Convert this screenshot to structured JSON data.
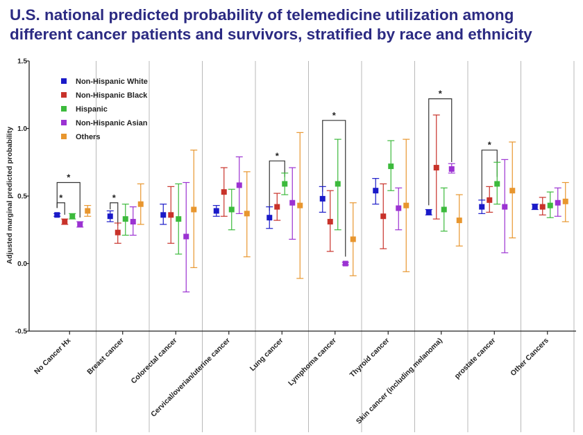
{
  "title": {
    "line1": "U.S. national predicted probability of telemedicine utilization among",
    "line2": "different cancer patients and survivors, stratified by race and ethnicity"
  },
  "chart_data": {
    "type": "scatter",
    "subtype": "point-with-error-bars",
    "ylabel": "Adjusted marginal predicted probability",
    "xlabel": "",
    "ylim": [
      -0.5,
      1.5
    ],
    "yticks": [
      {
        "value": 1.5,
        "label": "1.5"
      },
      {
        "value": 1.0,
        "label": "1.0"
      },
      {
        "value": 0.5,
        "label": "0.5"
      },
      {
        "value": 0.0,
        "label": "0.0"
      },
      {
        "value": -0.5,
        "label": "-0.5"
      }
    ],
    "grid": "vertical lines between categories",
    "legend_position": "top-left",
    "categories": [
      "No Cancer Hx",
      "Breast cancer",
      "Colorectal cancer",
      "Cervical/overian/uterine cancer",
      "Lung cancer",
      "Lymphoma cancer",
      "Thyroid cancer",
      "Skin cancer (including melanoma)",
      "prostate cancer",
      "Other Cancers"
    ],
    "series": [
      {
        "name": "Non-Hispanic White",
        "color": "#1a1ac8",
        "values": [
          0.36,
          0.35,
          0.36,
          0.39,
          0.34,
          0.48,
          0.54,
          0.38,
          0.42,
          0.42
        ],
        "lower": [
          0.35,
          0.31,
          0.29,
          0.35,
          0.26,
          0.38,
          0.44,
          0.36,
          0.37,
          0.4
        ],
        "upper": [
          0.37,
          0.39,
          0.44,
          0.43,
          0.42,
          0.57,
          0.63,
          0.4,
          0.47,
          0.44
        ]
      },
      {
        "name": "Non-Hispanic Black",
        "color": "#c8322a",
        "values": [
          0.31,
          0.23,
          0.36,
          0.53,
          0.42,
          0.31,
          0.35,
          0.71,
          0.47,
          0.42
        ],
        "lower": [
          0.29,
          0.15,
          0.15,
          0.35,
          0.32,
          0.09,
          0.11,
          0.33,
          0.38,
          0.36
        ],
        "upper": [
          0.33,
          0.3,
          0.57,
          0.71,
          0.52,
          0.54,
          0.59,
          1.1,
          0.57,
          0.49
        ]
      },
      {
        "name": "Hispanic",
        "color": "#3cba3c",
        "values": [
          0.35,
          0.33,
          0.33,
          0.4,
          0.59,
          0.59,
          0.72,
          0.4,
          0.59,
          0.43
        ],
        "lower": [
          0.33,
          0.21,
          0.07,
          0.25,
          0.51,
          0.25,
          0.54,
          0.24,
          0.44,
          0.34
        ],
        "upper": [
          0.37,
          0.44,
          0.59,
          0.55,
          0.67,
          0.92,
          0.91,
          0.56,
          0.75,
          0.53
        ]
      },
      {
        "name": "Non-Hispanic Asian",
        "color": "#9b32d2",
        "values": [
          0.29,
          0.31,
          0.2,
          0.58,
          0.45,
          0.0,
          0.41,
          0.7,
          0.42,
          0.45
        ],
        "lower": [
          0.27,
          0.21,
          -0.21,
          0.37,
          0.18,
          -0.01,
          0.25,
          0.67,
          0.08,
          0.35
        ],
        "upper": [
          0.31,
          0.42,
          0.6,
          0.79,
          0.71,
          0.01,
          0.56,
          0.74,
          0.77,
          0.56
        ]
      },
      {
        "name": "Others",
        "color": "#e8962e",
        "values": [
          0.39,
          0.44,
          0.4,
          0.37,
          0.43,
          0.18,
          0.43,
          0.32,
          0.54,
          0.46
        ],
        "lower": [
          0.35,
          0.29,
          -0.03,
          0.05,
          -0.11,
          -0.09,
          -0.06,
          0.13,
          0.19,
          0.31
        ],
        "upper": [
          0.43,
          0.59,
          0.84,
          0.68,
          0.97,
          0.45,
          0.92,
          0.51,
          0.9,
          0.6
        ]
      }
    ],
    "annotations": [
      {
        "text": "*",
        "category": "No Cancer Hx",
        "from": "Non-Hispanic White",
        "to": "Non-Hispanic Black",
        "level": 0.45
      },
      {
        "text": "*",
        "category": "No Cancer Hx",
        "from": "Non-Hispanic White",
        "to": "Non-Hispanic Asian",
        "level": 0.6
      },
      {
        "text": "*",
        "category": "Breast cancer",
        "from": "Non-Hispanic White",
        "to": "Non-Hispanic Black",
        "level": 0.45
      },
      {
        "text": "*",
        "category": "Lung cancer",
        "from": "Non-Hispanic White",
        "to": "Hispanic",
        "level": 0.76
      },
      {
        "text": "*",
        "category": "Lymphoma cancer",
        "from": "Non-Hispanic White",
        "to": "Non-Hispanic Asian",
        "level": 1.06
      },
      {
        "text": "*",
        "category": "Skin cancer (including melanoma)",
        "from": "Non-Hispanic White",
        "to": "Non-Hispanic Asian",
        "level": 1.22
      },
      {
        "text": "*",
        "category": "prostate cancer",
        "from": "Non-Hispanic White",
        "to": "Hispanic",
        "level": 0.84
      }
    ]
  }
}
